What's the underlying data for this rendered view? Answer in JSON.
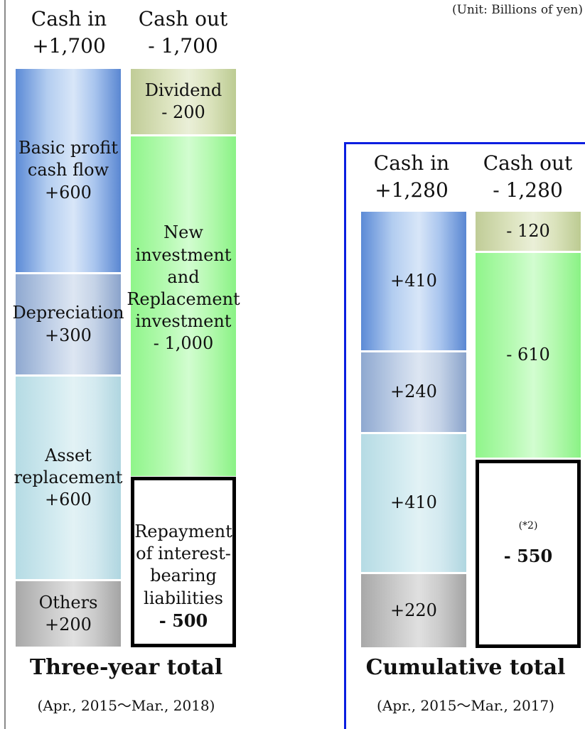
{
  "unit_label": "(Unit: Billions of yen)",
  "chart_data": [
    {
      "type": "bar",
      "title": "Three-year total",
      "subtitle": "(Apr., 2015～Mar., 2018)",
      "cash_in": {
        "header": "Cash in",
        "total_label": "+1,700",
        "segments": [
          {
            "label": "Basic profit cash flow",
            "value": 600,
            "value_label": "+600",
            "color": "#7aa3e0"
          },
          {
            "label": "Depreciation",
            "value": 300,
            "value_label": "+300",
            "color": "#b3c6e2"
          },
          {
            "label": "Asset replacement",
            "value": 600,
            "value_label": "+600",
            "color": "#cfe8ee"
          },
          {
            "label": "Others",
            "value": 200,
            "value_label": "+200",
            "color": "#c2c2c2"
          }
        ]
      },
      "cash_out": {
        "header": "Cash out",
        "total_label": "- 1,700",
        "segments": [
          {
            "label": "Dividend",
            "value": -200,
            "value_label": "- 200",
            "color": "#d6deb3"
          },
          {
            "label": "New investment and Replacement investment",
            "value": -1000,
            "value_label": "- 1,000",
            "color": "#aef8a9"
          },
          {
            "label": "Repayment of interest-bearing liabilities",
            "value": -500,
            "value_label": "- 500",
            "color": "#ffffff"
          }
        ]
      }
    },
    {
      "type": "bar",
      "title": "Cumulative total",
      "subtitle": "(Apr., 2015～Mar., 2017)",
      "cash_in": {
        "header": "Cash in",
        "total_label": "+1,280",
        "segments": [
          {
            "value": 410,
            "value_label": "+410",
            "color": "#7aa3e0"
          },
          {
            "value": 240,
            "value_label": "+240",
            "color": "#b3c6e2"
          },
          {
            "value": 410,
            "value_label": "+410",
            "color": "#cfe8ee"
          },
          {
            "value": 220,
            "value_label": "+220",
            "color": "#c2c2c2"
          }
        ]
      },
      "cash_out": {
        "header": "Cash out",
        "total_label": "- 1,280",
        "segments": [
          {
            "value": -120,
            "value_label": "- 120",
            "color": "#d6deb3"
          },
          {
            "value": -610,
            "value_label": "- 610",
            "color": "#aef8a9"
          },
          {
            "value": -550,
            "value_label": "- 550",
            "note": "(*2)",
            "color": "#ffffff"
          }
        ]
      }
    }
  ],
  "labels": {
    "basic_profit": [
      "Basic profit",
      "cash flow"
    ],
    "depreciation": "Depreciation",
    "asset_replacement": [
      "Asset",
      "replacement"
    ],
    "others": "Others",
    "dividend": "Dividend",
    "new_investment": [
      "New",
      "investment",
      "and",
      "Replacement",
      "investment"
    ],
    "repayment": [
      "Repayment",
      "of interest-",
      "bearing",
      "liabilities"
    ]
  }
}
